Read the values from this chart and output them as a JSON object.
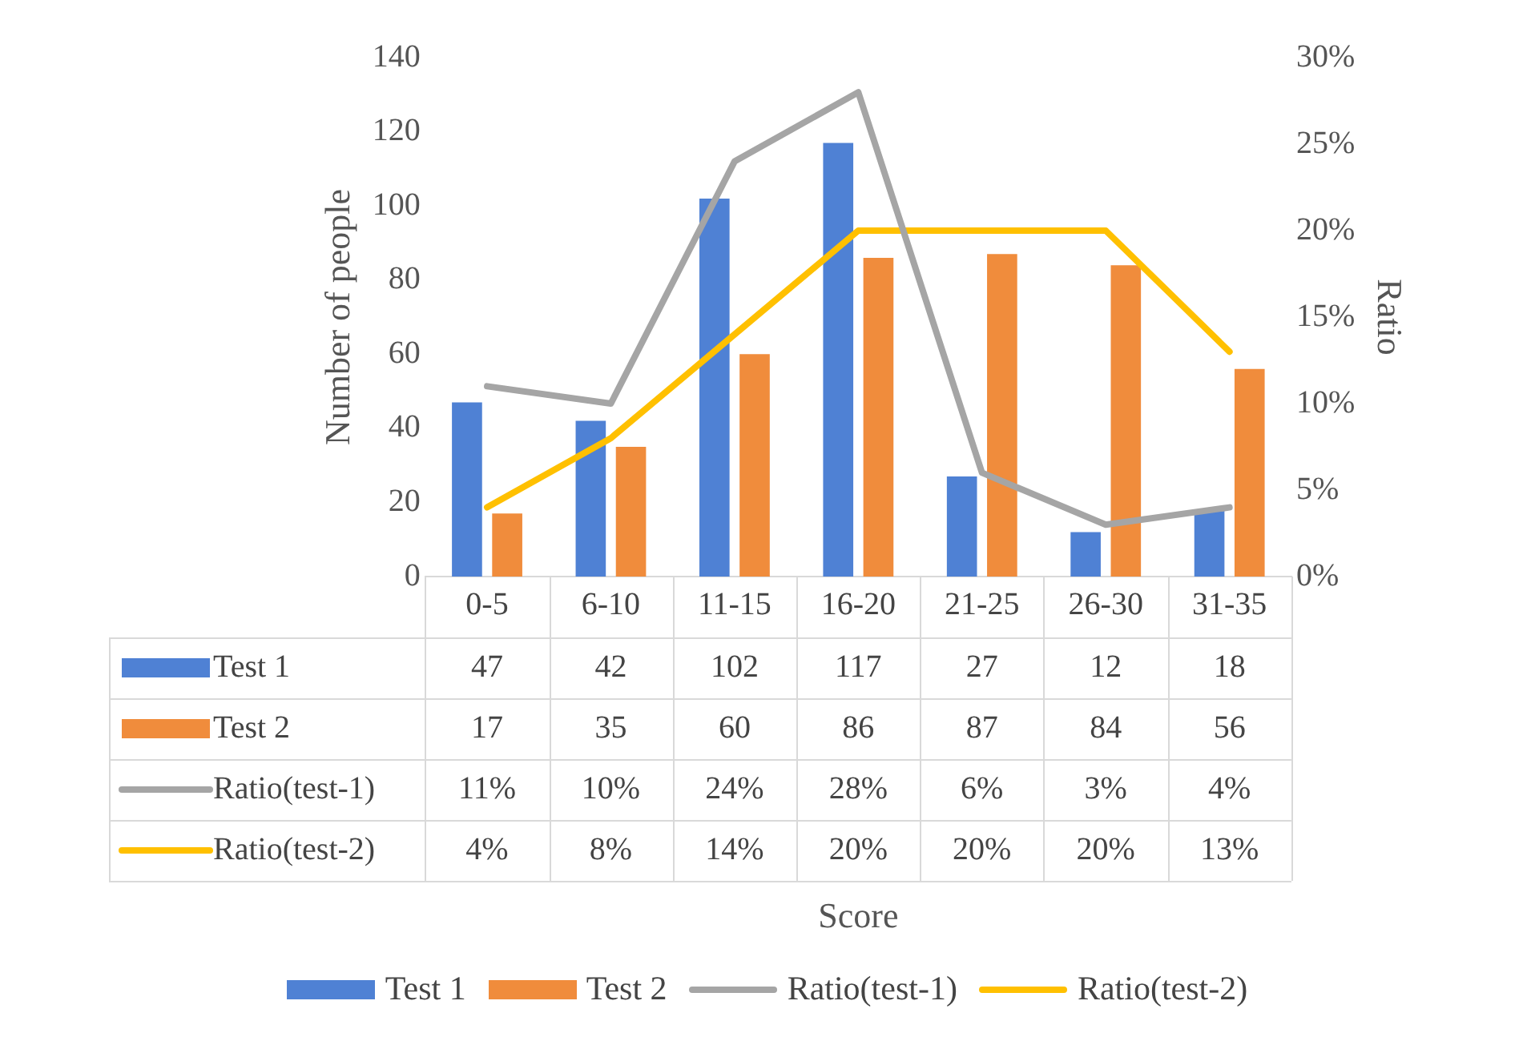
{
  "chart_data": {
    "type": "bar",
    "annotations": [
      "Score"
    ],
    "ylabel": "Number of people",
    "y2label": "Ratio",
    "categories": [
      "0-5",
      "6-10",
      "11-15",
      "16-20",
      "21-25",
      "26-30",
      "31-35"
    ],
    "series": [
      {
        "name": "Test 1",
        "color": "#4f81d4",
        "values": [
          47,
          42,
          102,
          117,
          27,
          12,
          18
        ],
        "value_labels": [
          "47",
          "42",
          "102",
          "117",
          "27",
          "12",
          "18"
        ]
      },
      {
        "name": "Test 2",
        "color": "#f08c3c",
        "values": [
          17,
          35,
          60,
          86,
          87,
          84,
          56
        ],
        "value_labels": [
          "17",
          "35",
          "60",
          "86",
          "87",
          "84",
          "56"
        ]
      },
      {
        "name": "Ratio(test-1)",
        "type": "line",
        "axis": "y2",
        "color": "#a5a5a5",
        "values": [
          11,
          10,
          24,
          28,
          6,
          3,
          4
        ],
        "value_labels": [
          "11%",
          "10%",
          "24%",
          "28%",
          "6%",
          "3%",
          "4%"
        ]
      },
      {
        "name": "Ratio(test-2)",
        "type": "line",
        "axis": "y2",
        "color": "#ffc000",
        "values": [
          4,
          8,
          14,
          20,
          20,
          20,
          13
        ],
        "value_labels": [
          "4%",
          "8%",
          "14%",
          "20%",
          "20%",
          "20%",
          "13%"
        ]
      }
    ],
    "ylim": [
      0,
      140
    ],
    "yticks": [
      0,
      20,
      40,
      60,
      80,
      100,
      120,
      140
    ],
    "y2lim": [
      0,
      30
    ],
    "y2ticks": [
      {
        "value": 0,
        "label": "0%"
      },
      {
        "value": 5,
        "label": "5%"
      },
      {
        "value": 10,
        "label": "10%"
      },
      {
        "value": 15,
        "label": "15%"
      },
      {
        "value": 20,
        "label": "20%"
      },
      {
        "value": 25,
        "label": "25%"
      },
      {
        "value": 30,
        "label": "30%"
      }
    ],
    "grid": false,
    "legend": "bottom",
    "marker": "none",
    "line_style": "solid"
  }
}
